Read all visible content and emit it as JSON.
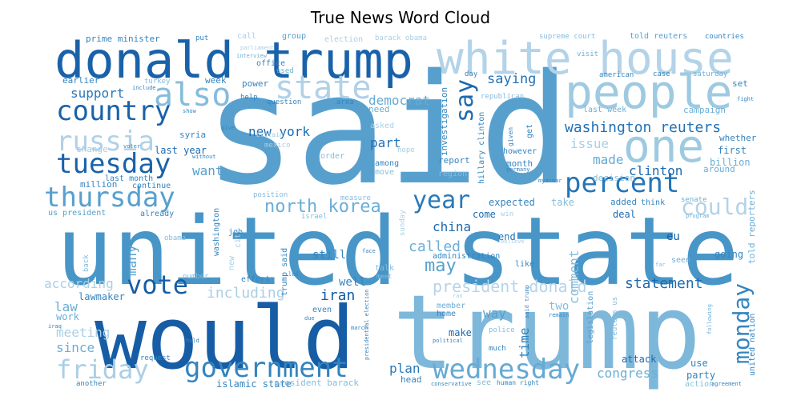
{
  "chart_data": {
    "type": "wordcloud",
    "title": "True News Word Cloud",
    "colormap": "Blues",
    "background": "#ffffff",
    "words": [
      {
        "text": "said",
        "weight": 1.0
      },
      {
        "text": "united state",
        "weight": 0.93
      },
      {
        "text": "trump",
        "weight": 0.9
      },
      {
        "text": "would",
        "weight": 0.86
      },
      {
        "text": "donald trump",
        "weight": 0.72
      },
      {
        "text": "white house",
        "weight": 0.6
      },
      {
        "text": "people",
        "weight": 0.55
      },
      {
        "text": "one",
        "weight": 0.5
      },
      {
        "text": "also",
        "weight": 0.42
      },
      {
        "text": "state",
        "weight": 0.4
      },
      {
        "text": "country",
        "weight": 0.4
      },
      {
        "text": "russia",
        "weight": 0.38
      },
      {
        "text": "tuesday",
        "weight": 0.38
      },
      {
        "text": "percent",
        "weight": 0.38
      },
      {
        "text": "thursday",
        "weight": 0.36
      },
      {
        "text": "government",
        "weight": 0.36
      },
      {
        "text": "wednesday",
        "weight": 0.36
      },
      {
        "text": "vote",
        "weight": 0.34
      },
      {
        "text": "friday",
        "weight": 0.34
      },
      {
        "text": "year",
        "weight": 0.32
      },
      {
        "text": "say",
        "weight": 0.32
      },
      {
        "text": "monday",
        "weight": 0.3
      },
      {
        "text": "north korea",
        "weight": 0.26
      },
      {
        "text": "washington reuters",
        "weight": 0.24
      },
      {
        "text": "could",
        "weight": 0.24
      },
      {
        "text": "statement",
        "weight": 0.22
      },
      {
        "text": "new york",
        "weight": 0.2
      },
      {
        "text": "president donald",
        "weight": 0.2
      },
      {
        "text": "saying",
        "weight": 0.2
      },
      {
        "text": "democrat",
        "weight": 0.18
      },
      {
        "text": "iran",
        "weight": 0.2
      },
      {
        "text": "may",
        "weight": 0.2
      },
      {
        "text": "china",
        "weight": 0.18
      },
      {
        "text": "called",
        "weight": 0.18
      },
      {
        "text": "including",
        "weight": 0.18
      },
      {
        "text": "according",
        "weight": 0.17
      },
      {
        "text": "support",
        "weight": 0.17
      },
      {
        "text": "part",
        "weight": 0.17
      },
      {
        "text": "clinton",
        "weight": 0.17
      },
      {
        "text": "want",
        "weight": 0.16
      },
      {
        "text": "made",
        "weight": 0.16
      },
      {
        "text": "issue",
        "weight": 0.16
      },
      {
        "text": "congress",
        "weight": 0.16
      },
      {
        "text": "plan",
        "weight": 0.16
      },
      {
        "text": "law",
        "weight": 0.16
      },
      {
        "text": "meeting",
        "weight": 0.16
      },
      {
        "text": "since",
        "weight": 0.15
      },
      {
        "text": "many",
        "weight": 0.15
      },
      {
        "text": "time",
        "weight": 0.15
      },
      {
        "text": "comment",
        "weight": 0.15
      },
      {
        "text": "way",
        "weight": 0.15
      },
      {
        "text": "still",
        "weight": 0.14
      },
      {
        "text": "two",
        "weight": 0.14
      },
      {
        "text": "well",
        "weight": 0.14
      },
      {
        "text": "eu",
        "weight": 0.13
      },
      {
        "text": "investigation",
        "weight": 0.12
      },
      {
        "text": "hillary clinton",
        "weight": 0.11
      },
      {
        "text": "report",
        "weight": 0.12
      },
      {
        "text": "month",
        "weight": 0.12
      },
      {
        "text": "first",
        "weight": 0.12
      },
      {
        "text": "billion",
        "weight": 0.12
      },
      {
        "text": "last year",
        "weight": 0.12
      },
      {
        "text": "expected",
        "weight": 0.12
      },
      {
        "text": "take",
        "weight": 0.12
      },
      {
        "text": "end",
        "weight": 0.12
      },
      {
        "text": "come",
        "weight": 0.12
      },
      {
        "text": "deal",
        "weight": 0.12
      },
      {
        "text": "added",
        "weight": 0.12
      },
      {
        "text": "attack",
        "weight": 0.12
      },
      {
        "text": "use",
        "weight": 0.12
      },
      {
        "text": "party",
        "weight": 0.12
      },
      {
        "text": "make",
        "weight": 0.12
      },
      {
        "text": "going",
        "weight": 0.12
      },
      {
        "text": "told reporters",
        "weight": 0.11
      },
      {
        "text": "trump said",
        "weight": 0.11
      },
      {
        "text": "lawmaker",
        "weight": 0.12
      },
      {
        "text": "work",
        "weight": 0.11
      },
      {
        "text": "legislation",
        "weight": 0.11
      },
      {
        "text": "united nation",
        "weight": 0.11
      },
      {
        "text": "earlier",
        "weight": 0.11
      },
      {
        "text": "prime minister",
        "weight": 0.1
      },
      {
        "text": "week",
        "weight": 0.1
      },
      {
        "text": "power",
        "weight": 0.1
      },
      {
        "text": "need",
        "weight": 0.1
      },
      {
        "text": "among",
        "weight": 0.1
      },
      {
        "text": "change",
        "weight": 0.1
      },
      {
        "text": "syria",
        "weight": 0.1
      },
      {
        "text": "million",
        "weight": 0.1
      },
      {
        "text": "continue",
        "weight": 0.1
      },
      {
        "text": "last month",
        "weight": 0.1
      },
      {
        "text": "us president",
        "weight": 0.1
      },
      {
        "text": "already",
        "weight": 0.1
      },
      {
        "text": "washington",
        "weight": 0.1
      },
      {
        "text": "job",
        "weight": 0.1
      },
      {
        "text": "effort",
        "weight": 0.1
      },
      {
        "text": "administration",
        "weight": 0.1
      },
      {
        "text": "decision",
        "weight": 0.1
      },
      {
        "text": "campaign",
        "weight": 0.1
      },
      {
        "text": "last week",
        "weight": 0.1
      },
      {
        "text": "around",
        "weight": 0.1
      },
      {
        "text": "whether",
        "weight": 0.1
      },
      {
        "text": "think",
        "weight": 0.09
      },
      {
        "text": "seen",
        "weight": 0.09
      },
      {
        "text": "like",
        "weight": 0.09
      },
      {
        "text": "set",
        "weight": 0.09
      },
      {
        "text": "however",
        "weight": 0.09
      },
      {
        "text": "islamic state",
        "weight": 0.11
      },
      {
        "text": "president barack",
        "weight": 0.1
      },
      {
        "text": "head",
        "weight": 0.1
      },
      {
        "text": "human right",
        "weight": 0.08
      },
      {
        "text": "another",
        "weight": 0.08
      },
      {
        "text": "request",
        "weight": 0.08
      },
      {
        "text": "member",
        "weight": 0.09
      },
      {
        "text": "home",
        "weight": 0.09
      },
      {
        "text": "even",
        "weight": 0.09
      },
      {
        "text": "action",
        "weight": 0.09
      },
      {
        "text": "supreme court",
        "weight": 0.08
      },
      {
        "text": "told reuters",
        "weight": 0.09
      },
      {
        "text": "countries",
        "weight": 0.08
      },
      {
        "text": "election",
        "weight": 0.1
      },
      {
        "text": "barack obama",
        "weight": 0.09
      },
      {
        "text": "call",
        "weight": 0.09
      },
      {
        "text": "group",
        "weight": 0.09
      },
      {
        "text": "put",
        "weight": 0.08
      },
      {
        "text": "office",
        "weight": 0.09
      },
      {
        "text": "used",
        "weight": 0.08
      },
      {
        "text": "help",
        "weight": 0.08
      },
      {
        "text": "question",
        "weight": 0.08
      },
      {
        "text": "area",
        "weight": 0.08
      },
      {
        "text": "visit",
        "weight": 0.08
      },
      {
        "text": "american",
        "weight": 0.08
      },
      {
        "text": "case",
        "weight": 0.08
      },
      {
        "text": "saturday",
        "weight": 0.08
      },
      {
        "text": "day",
        "weight": 0.08
      },
      {
        "text": "turkey",
        "weight": 0.08
      },
      {
        "text": "republican",
        "weight": 0.08
      },
      {
        "text": "position",
        "weight": 0.08
      },
      {
        "text": "measure",
        "weight": 0.08
      },
      {
        "text": "move",
        "weight": 0.08
      },
      {
        "text": "region",
        "weight": 0.08
      },
      {
        "text": "israel",
        "weight": 0.08
      },
      {
        "text": "senate",
        "weight": 0.08
      },
      {
        "text": "program",
        "weight": 0.07
      },
      {
        "text": "obama",
        "weight": 0.08
      },
      {
        "text": "back",
        "weight": 0.08
      },
      {
        "text": "number",
        "weight": 0.08
      },
      {
        "text": "talk",
        "weight": 0.08
      },
      {
        "text": "meet",
        "weight": 0.07
      },
      {
        "text": "reuters us",
        "weight": 0.07
      },
      {
        "text": "following",
        "weight": 0.07
      },
      {
        "text": "far",
        "weight": 0.07
      },
      {
        "text": "police",
        "weight": 0.07
      },
      {
        "text": "much",
        "weight": 0.08
      },
      {
        "text": "political",
        "weight": 0.07
      },
      {
        "text": "conservative",
        "weight": 0.07
      },
      {
        "text": "presidential election",
        "weight": 0.07
      },
      {
        "text": "said trump",
        "weight": 0.07
      },
      {
        "text": "march",
        "weight": 0.07
      },
      {
        "text": "remain",
        "weight": 0.07
      },
      {
        "text": "due",
        "weight": 0.07
      },
      {
        "text": "led",
        "weight": 0.07
      },
      {
        "text": "face",
        "weight": 0.07
      },
      {
        "text": "iraq",
        "weight": 0.07
      },
      {
        "text": "hold",
        "weight": 0.07
      },
      {
        "text": "give",
        "weight": 0.07
      },
      {
        "text": "show",
        "weight": 0.07
      },
      {
        "text": "include",
        "weight": 0.07
      },
      {
        "text": "voter",
        "weight": 0.07
      },
      {
        "text": "without",
        "weight": 0.07
      },
      {
        "text": "order",
        "weight": 0.08
      },
      {
        "text": "mexico",
        "weight": 0.07
      },
      {
        "text": "britain",
        "weight": 0.07
      },
      {
        "text": "hope",
        "weight": 0.07
      },
      {
        "text": "germany",
        "weight": 0.07
      },
      {
        "text": "given",
        "weight": 0.07
      },
      {
        "text": "myanmar",
        "weight": 0.07
      },
      {
        "text": "win",
        "weight": 0.07
      },
      {
        "text": "believe",
        "weight": 0.07
      },
      {
        "text": "fight",
        "weight": 0.07
      },
      {
        "text": "agreement",
        "weight": 0.07
      },
      {
        "text": "interview",
        "weight": 0.07
      },
      {
        "text": "parliament",
        "weight": 0.07
      },
      {
        "text": "sunday",
        "weight": 0.07
      },
      {
        "text": "get",
        "weight": 0.08
      },
      {
        "text": "asked",
        "weight": 0.08
      },
      {
        "text": "see",
        "weight": 0.08
      },
      {
        "text": "city",
        "weight": 0.07
      },
      {
        "text": "new",
        "weight": 0.07
      },
      {
        "text": "ran",
        "weight": 0.06
      }
    ]
  }
}
